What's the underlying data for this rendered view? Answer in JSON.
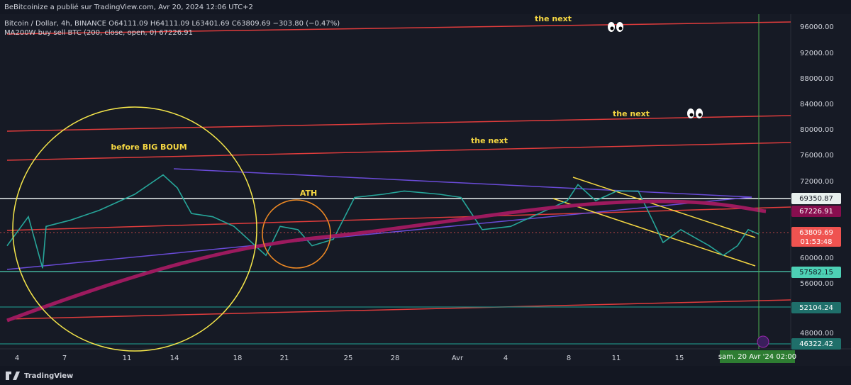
{
  "header": {
    "title": "BeBitcoinize a publié sur TradingView.com, Avr 20, 2024 12:06 UTC+2"
  },
  "legend": {
    "symbol": "Bitcoin / Dollar, 4h, BINANCE  O64111.09  H64111.09  L63401.69  C63809.69  −303.80 (−0.47%)",
    "indicator": "MA200W buy sell BTC (200, close, open, 0)  67226.91"
  },
  "annotations": [
    "the next",
    "the next",
    "the next",
    "before BIG BOUM",
    "ATH"
  ],
  "price_axis": {
    "labels": [
      "96000.00",
      "92000.00",
      "88000.00",
      "84000.00",
      "80000.00",
      "76000.00",
      "72000.00",
      "60000.00",
      "56000.00",
      "48000.00"
    ]
  },
  "price_tags": [
    {
      "label": "69350.87"
    },
    {
      "label": "67226.91"
    },
    {
      "label": "63809.69",
      "countdown": "01:53:48"
    },
    {
      "label": "57582.15"
    },
    {
      "label": "52104.24"
    },
    {
      "label": "46322.42"
    }
  ],
  "time_axis": {
    "labels": [
      "4",
      "7",
      "11",
      "14",
      "18",
      "21",
      "25",
      "28",
      "Avr",
      "4",
      "8",
      "11",
      "15"
    ],
    "crosshair": "sam. 20 Avr '24   02:00"
  },
  "footer": {
    "brand": "TradingView"
  }
}
